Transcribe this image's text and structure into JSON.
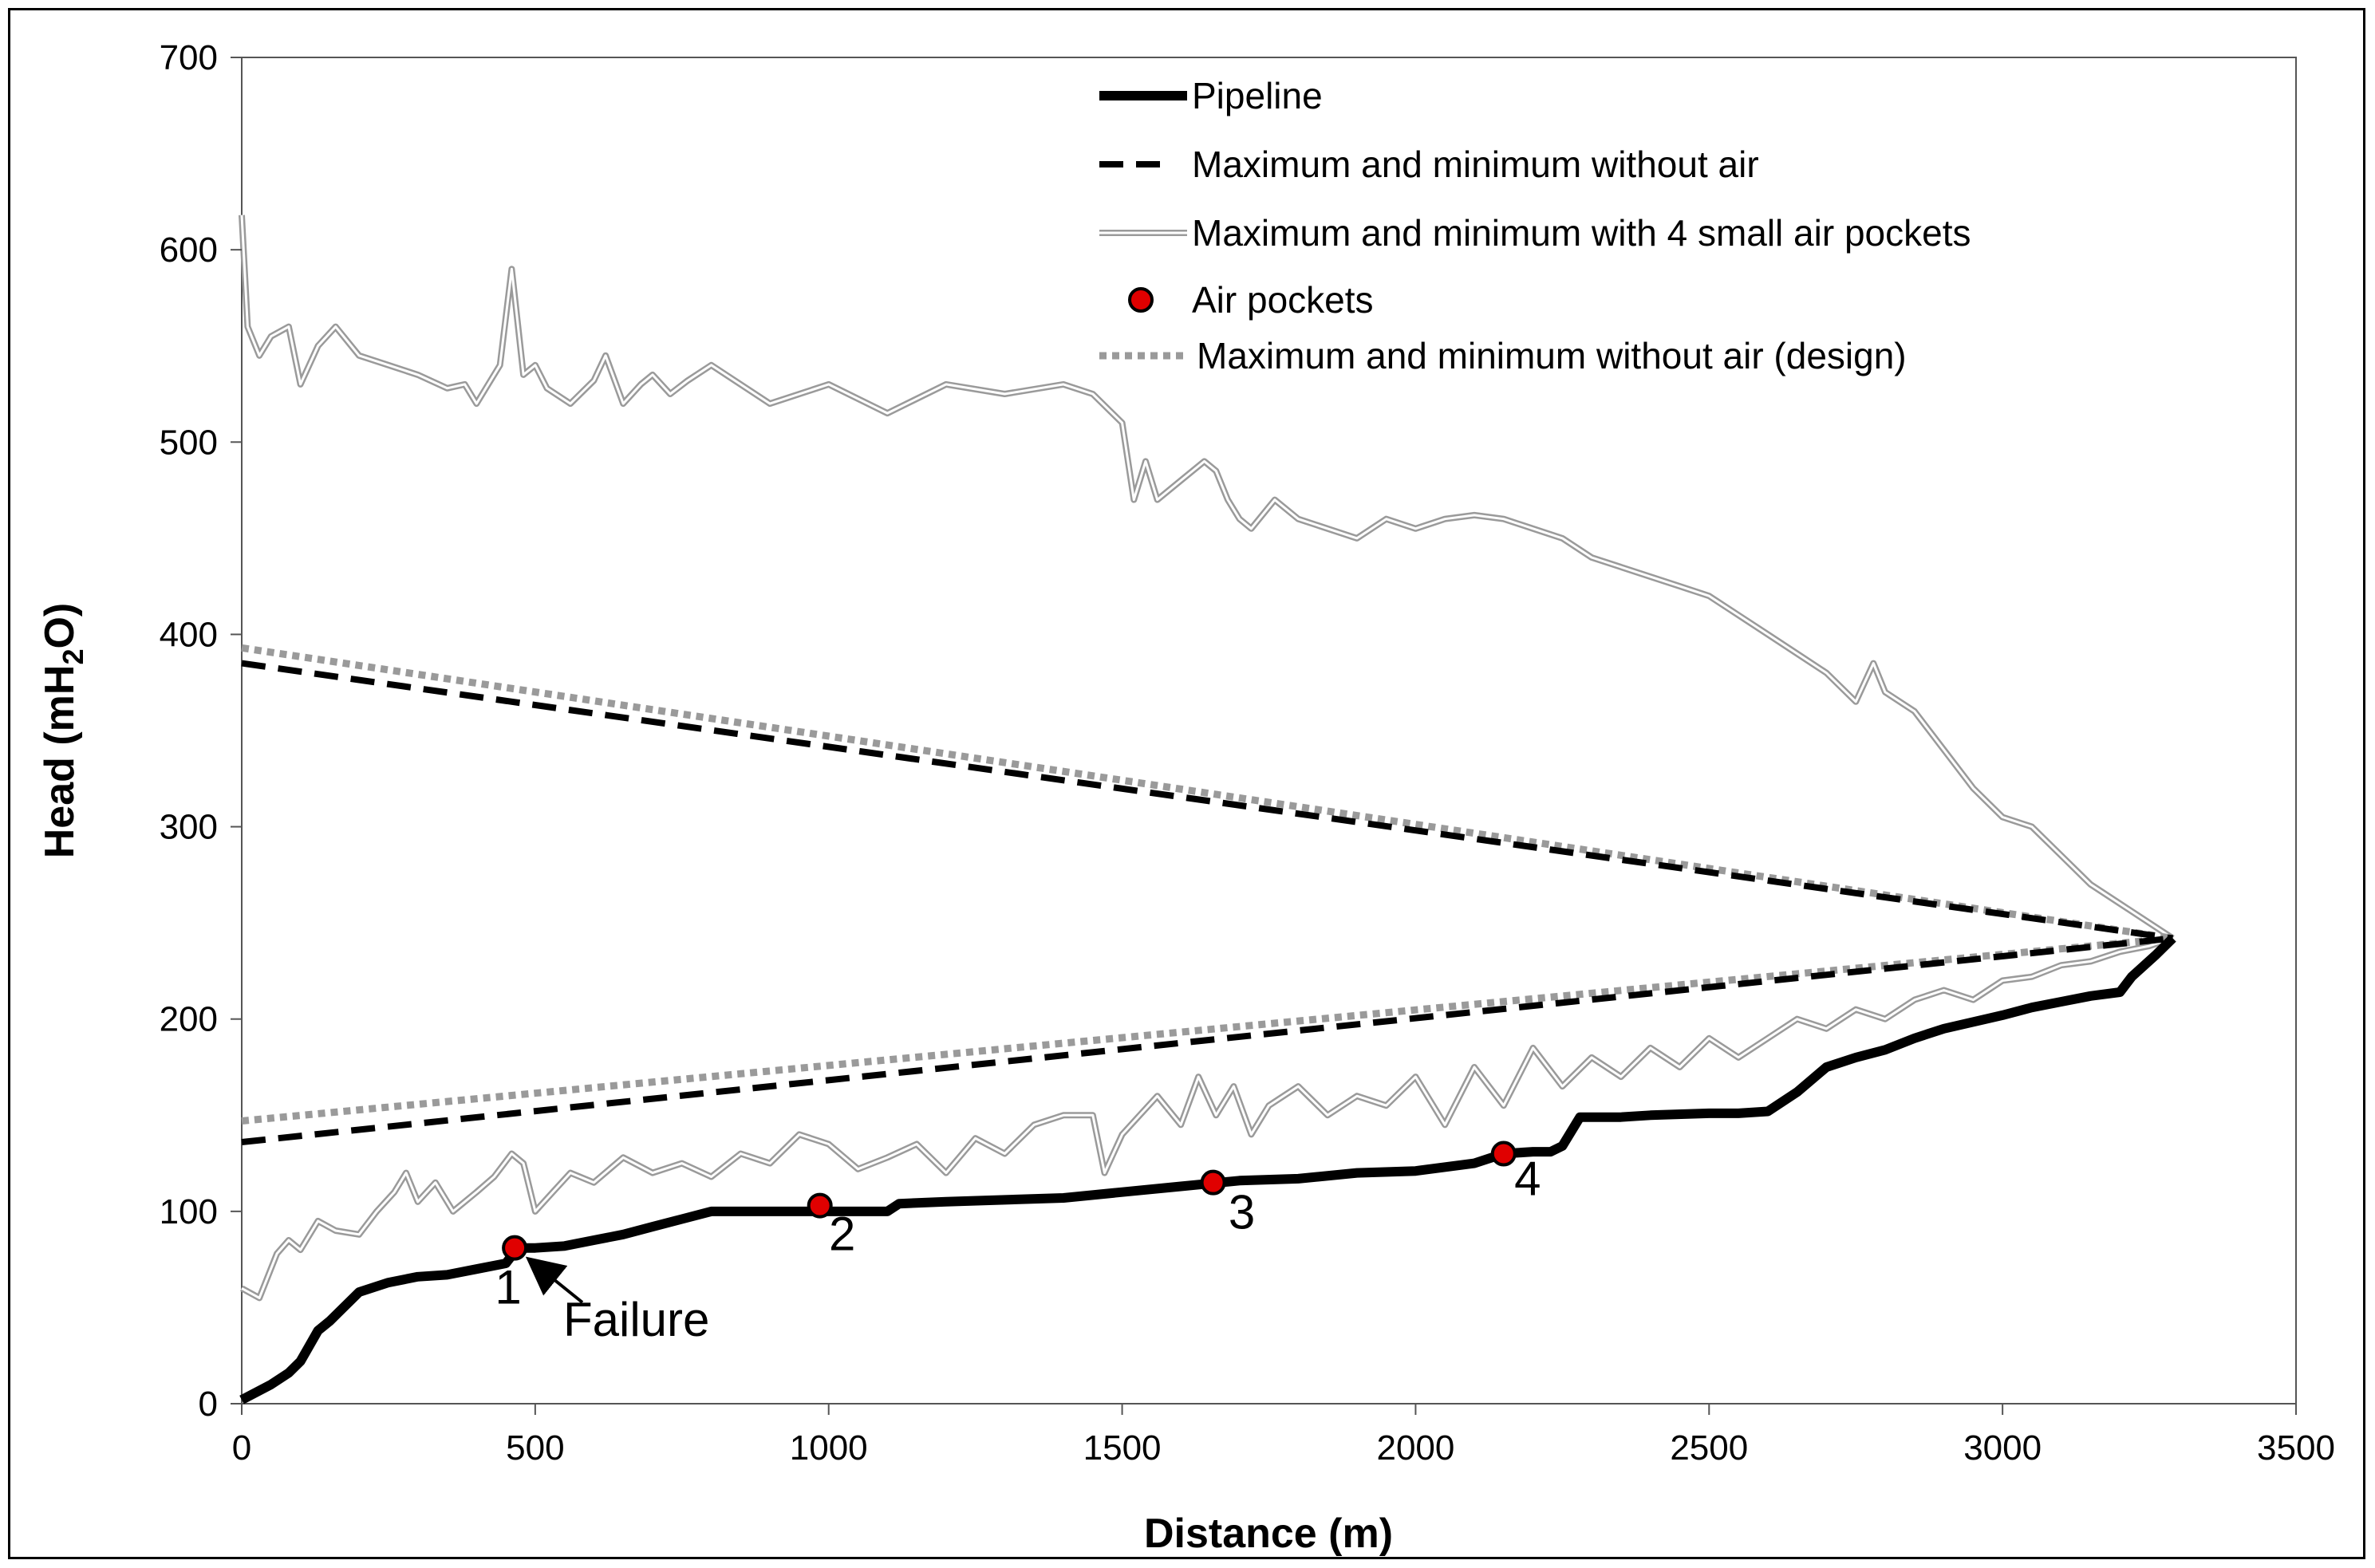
{
  "chart_data": {
    "type": "line",
    "xlabel": "Distance (m)",
    "ylabel": {
      "prefix": "Head (mH",
      "subscript": "2",
      "suffix": "O)"
    },
    "xlim": [
      0,
      3500
    ],
    "ylim": [
      0,
      700
    ],
    "x_ticks": [
      0,
      500,
      1000,
      1500,
      2000,
      2500,
      3000,
      3500
    ],
    "y_ticks": [
      0,
      100,
      200,
      300,
      400,
      500,
      600,
      700
    ],
    "grid": false,
    "legend_position": "top-right",
    "legend": [
      {
        "key": "pipeline",
        "label": "Pipeline"
      },
      {
        "key": "noair",
        "label": "Maximum and minimum without air"
      },
      {
        "key": "airpockets4",
        "label": "Maximum and minimum with 4 small air pockets"
      },
      {
        "key": "airpts",
        "label": "Air pockets"
      },
      {
        "key": "design",
        "label": "Maximum and minimum without air (design)"
      }
    ],
    "colors": {
      "pipeline": "#000000",
      "noair": "#000000",
      "airpockets4": "#9a9a9a",
      "air_point_fill": "#e00000",
      "design": "#9a9a9a"
    },
    "series": [
      {
        "key": "pipeline",
        "x": [
          0,
          50,
          80,
          100,
          130,
          150,
          200,
          250,
          300,
          350,
          400,
          450,
          470,
          500,
          550,
          600,
          650,
          700,
          750,
          800,
          850,
          900,
          950,
          1000,
          1050,
          1100,
          1120,
          1200,
          1300,
          1400,
          1500,
          1600,
          1700,
          1800,
          1900,
          2000,
          2100,
          2150,
          2200,
          2230,
          2250,
          2280,
          2350,
          2400,
          2500,
          2550,
          2600,
          2650,
          2700,
          2750,
          2800,
          2850,
          2900,
          3000,
          3050,
          3100,
          3150,
          3200,
          3220,
          3260,
          3290
        ],
        "y": [
          2,
          10,
          16,
          22,
          38,
          43,
          58,
          63,
          66,
          67,
          70,
          73,
          81,
          81,
          82,
          85,
          88,
          92,
          96,
          100,
          100,
          100,
          100,
          100,
          100,
          100,
          104,
          105,
          106,
          107,
          110,
          113,
          116,
          117,
          120,
          121,
          125,
          130,
          131,
          131,
          134,
          149,
          149,
          150,
          151,
          151,
          152,
          162,
          175,
          180,
          184,
          190,
          195,
          202,
          206,
          209,
          212,
          214,
          222,
          233,
          242
        ]
      },
      {
        "key": "noair_max",
        "x": [
          0,
          3290
        ],
        "y": [
          385,
          242
        ]
      },
      {
        "key": "noair_min",
        "x": [
          0,
          3290
        ],
        "y": [
          136,
          242
        ]
      },
      {
        "key": "design_max",
        "x": [
          0,
          3290
        ],
        "y": [
          393,
          242
        ]
      },
      {
        "key": "design_min",
        "x": [
          0,
          3290
        ],
        "y": [
          147,
          242
        ]
      },
      {
        "key": "airpockets4_max",
        "x": [
          0,
          10,
          30,
          50,
          80,
          100,
          130,
          160,
          200,
          250,
          300,
          350,
          380,
          400,
          420,
          440,
          460,
          480,
          500,
          520,
          560,
          600,
          620,
          650,
          680,
          700,
          730,
          760,
          800,
          900,
          1000,
          1100,
          1200,
          1300,
          1400,
          1450,
          1500,
          1520,
          1540,
          1560,
          1600,
          1640,
          1660,
          1680,
          1700,
          1720,
          1760,
          1800,
          1850,
          1900,
          1950,
          2000,
          2050,
          2100,
          2150,
          2200,
          2250,
          2300,
          2350,
          2400,
          2450,
          2500,
          2550,
          2600,
          2650,
          2700,
          2750,
          2780,
          2800,
          2850,
          2900,
          2950,
          3000,
          3050,
          3100,
          3150,
          3200,
          3250,
          3290
        ],
        "y": [
          618,
          560,
          545,
          555,
          560,
          530,
          550,
          560,
          545,
          540,
          535,
          528,
          530,
          520,
          530,
          540,
          590,
          535,
          540,
          528,
          520,
          532,
          545,
          520,
          530,
          535,
          525,
          532,
          540,
          520,
          530,
          515,
          530,
          525,
          530,
          525,
          510,
          470,
          490,
          470,
          480,
          490,
          485,
          470,
          460,
          455,
          470,
          460,
          455,
          450,
          460,
          455,
          460,
          462,
          460,
          455,
          450,
          440,
          435,
          430,
          425,
          420,
          410,
          400,
          390,
          380,
          365,
          385,
          370,
          360,
          340,
          320,
          305,
          300,
          285,
          270,
          260,
          250,
          242
        ]
      },
      {
        "key": "airpockets4_min",
        "x": [
          0,
          30,
          60,
          80,
          100,
          130,
          160,
          200,
          230,
          260,
          280,
          300,
          330,
          360,
          400,
          430,
          460,
          480,
          500,
          530,
          560,
          600,
          650,
          700,
          750,
          800,
          850,
          900,
          950,
          1000,
          1050,
          1100,
          1150,
          1200,
          1250,
          1300,
          1350,
          1400,
          1450,
          1470,
          1500,
          1530,
          1560,
          1600,
          1630,
          1660,
          1690,
          1720,
          1750,
          1800,
          1850,
          1900,
          1950,
          2000,
          2050,
          2100,
          2150,
          2200,
          2250,
          2300,
          2350,
          2400,
          2450,
          2500,
          2550,
          2600,
          2650,
          2700,
          2750,
          2800,
          2850,
          2900,
          2950,
          3000,
          3050,
          3100,
          3150,
          3200,
          3250,
          3290
        ],
        "y": [
          60,
          55,
          78,
          85,
          80,
          95,
          90,
          88,
          100,
          110,
          120,
          105,
          115,
          100,
          110,
          118,
          130,
          125,
          100,
          110,
          120,
          115,
          128,
          120,
          125,
          118,
          130,
          125,
          140,
          135,
          122,
          128,
          135,
          120,
          138,
          130,
          145,
          150,
          150,
          120,
          140,
          150,
          160,
          145,
          170,
          150,
          165,
          140,
          155,
          165,
          150,
          160,
          155,
          170,
          145,
          175,
          155,
          185,
          165,
          180,
          170,
          185,
          175,
          190,
          180,
          190,
          200,
          195,
          205,
          200,
          210,
          215,
          210,
          220,
          222,
          228,
          230,
          235,
          238,
          242
        ]
      }
    ],
    "air_pocket_points": [
      {
        "label": "1",
        "x": 465,
        "y": 81
      },
      {
        "label": "2",
        "x": 985,
        "y": 103
      },
      {
        "label": "3",
        "x": 1655,
        "y": 115
      },
      {
        "label": "4",
        "x": 2150,
        "y": 130
      }
    ],
    "annotations": [
      {
        "text": "Failure",
        "x": 490,
        "y": 79
      }
    ]
  }
}
